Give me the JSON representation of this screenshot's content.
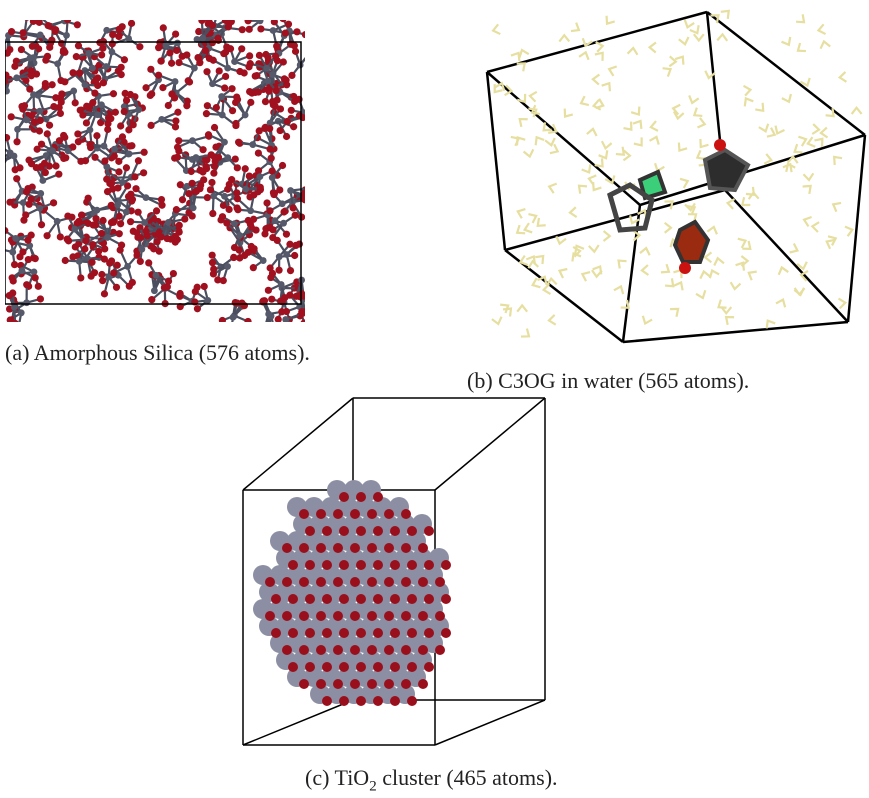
{
  "figure": {
    "panels": [
      {
        "label": "(a)",
        "caption": "Amorphous Silica (576 atoms)."
      },
      {
        "label": "(b)",
        "caption": "C3OG in water (565 atoms)."
      },
      {
        "label": "(c)",
        "caption_parts": [
          "TiO",
          "2",
          "cluster (465 atoms)."
        ]
      }
    ]
  }
}
